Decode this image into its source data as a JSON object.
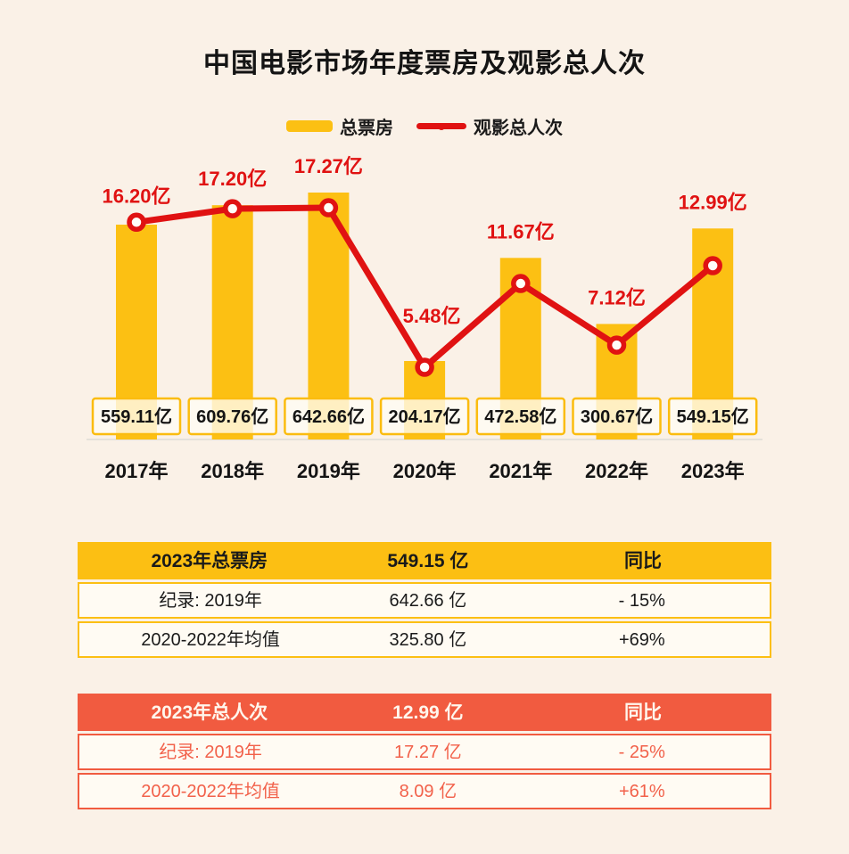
{
  "page": {
    "background": "#FAF1E7"
  },
  "chart_data": {
    "type": "bar+line",
    "title": "中国电影市场年度票房及观影总人次",
    "categories": [
      "2017年",
      "2018年",
      "2019年",
      "2020年",
      "2021年",
      "2022年",
      "2023年"
    ],
    "series": [
      {
        "name": "总票房",
        "type": "bar",
        "unit": "亿",
        "color": "#FCC013",
        "values": [
          559.11,
          609.76,
          642.66,
          204.17,
          472.58,
          300.67,
          549.15
        ]
      },
      {
        "name": "观影总人次",
        "type": "line",
        "unit": "亿",
        "color": "#E01212",
        "marker": "open-circle",
        "values": [
          16.2,
          17.2,
          17.27,
          5.48,
          11.67,
          7.12,
          12.99
        ]
      }
    ],
    "legend_position": "top",
    "grid": false,
    "bar_axis_range": [
      0,
      700
    ],
    "line_axis_range": [
      0,
      20
    ],
    "value_label_suffix": "亿"
  },
  "tables": [
    {
      "id": "boxoffice",
      "theme": {
        "header_bg": "#FCBF13",
        "header_text": "#1A1A1A",
        "row_text": "#1A1A1A",
        "border": "#FCBF13",
        "row_bg": "#FFFBF3"
      },
      "header": [
        "2023年总票房",
        "549.15 亿",
        "同比"
      ],
      "rows": [
        [
          "纪录: 2019年",
          "642.66 亿",
          "- 15%"
        ],
        [
          "2020-2022年均值",
          "325.80 亿",
          "+69%"
        ]
      ]
    },
    {
      "id": "admissions",
      "theme": {
        "header_bg": "#F15B40",
        "header_text": "#FFF6ED",
        "row_text": "#F2614A",
        "border": "#F15B40",
        "row_bg": "#FFFBF3"
      },
      "header": [
        "2023年总人次",
        "12.99 亿",
        "同比"
      ],
      "rows": [
        [
          "纪录: 2019年",
          "17.27 亿",
          "- 25%"
        ],
        [
          "2020-2022年均值",
          "8.09 亿",
          "+61%"
        ]
      ]
    }
  ]
}
